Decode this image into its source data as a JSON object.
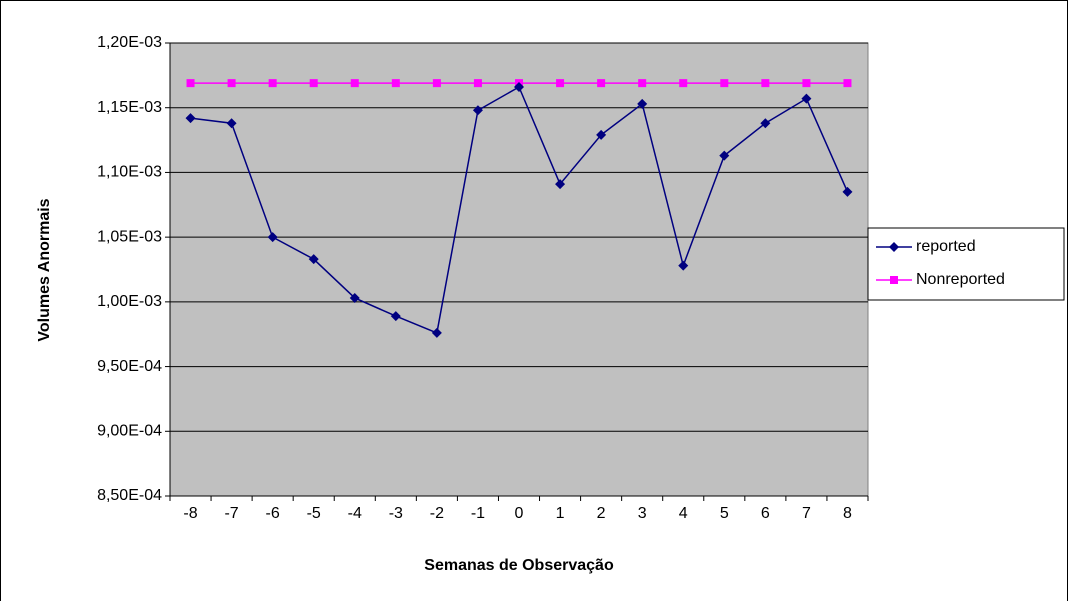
{
  "chart_data": {
    "type": "line",
    "x_label": "Semanas de Observação",
    "y_label": "Volumes Anormais",
    "categories": [
      "-8",
      "-7",
      "-6",
      "-5",
      "-4",
      "-3",
      "-2",
      "-1",
      "0",
      "1",
      "2",
      "3",
      "4",
      "5",
      "6",
      "7",
      "8"
    ],
    "series": [
      {
        "name": "reported",
        "color": "#000080",
        "marker": "diamond",
        "values": [
          0.001142,
          0.001138,
          0.00105,
          0.001033,
          0.001003,
          0.000989,
          0.000976,
          0.001148,
          0.001166,
          0.001091,
          0.001129,
          0.001153,
          0.001028,
          0.001113,
          0.001138,
          0.001157,
          0.001085
        ]
      },
      {
        "name": "Nonreported",
        "color": "#ff00ff",
        "marker": "square",
        "values": [
          0.001169,
          0.001169,
          0.001169,
          0.001169,
          0.001169,
          0.001169,
          0.001169,
          0.001169,
          0.001169,
          0.001169,
          0.001169,
          0.001169,
          0.001169,
          0.001169,
          0.001169,
          0.001169,
          0.001169
        ]
      }
    ],
    "ylim": [
      0.00085,
      0.0012
    ],
    "yticks": [
      {
        "value": 0.00085,
        "label": "8,50E-04"
      },
      {
        "value": 0.0009,
        "label": "9,00E-04"
      },
      {
        "value": 0.00095,
        "label": "9,50E-04"
      },
      {
        "value": 0.001,
        "label": "1,00E-03"
      },
      {
        "value": 0.00105,
        "label": "1,05E-03"
      },
      {
        "value": 0.0011,
        "label": "1,10E-03"
      },
      {
        "value": 0.00115,
        "label": "1,15E-03"
      },
      {
        "value": 0.0012,
        "label": "1,20E-03"
      }
    ],
    "grid": true,
    "legend": "right"
  }
}
